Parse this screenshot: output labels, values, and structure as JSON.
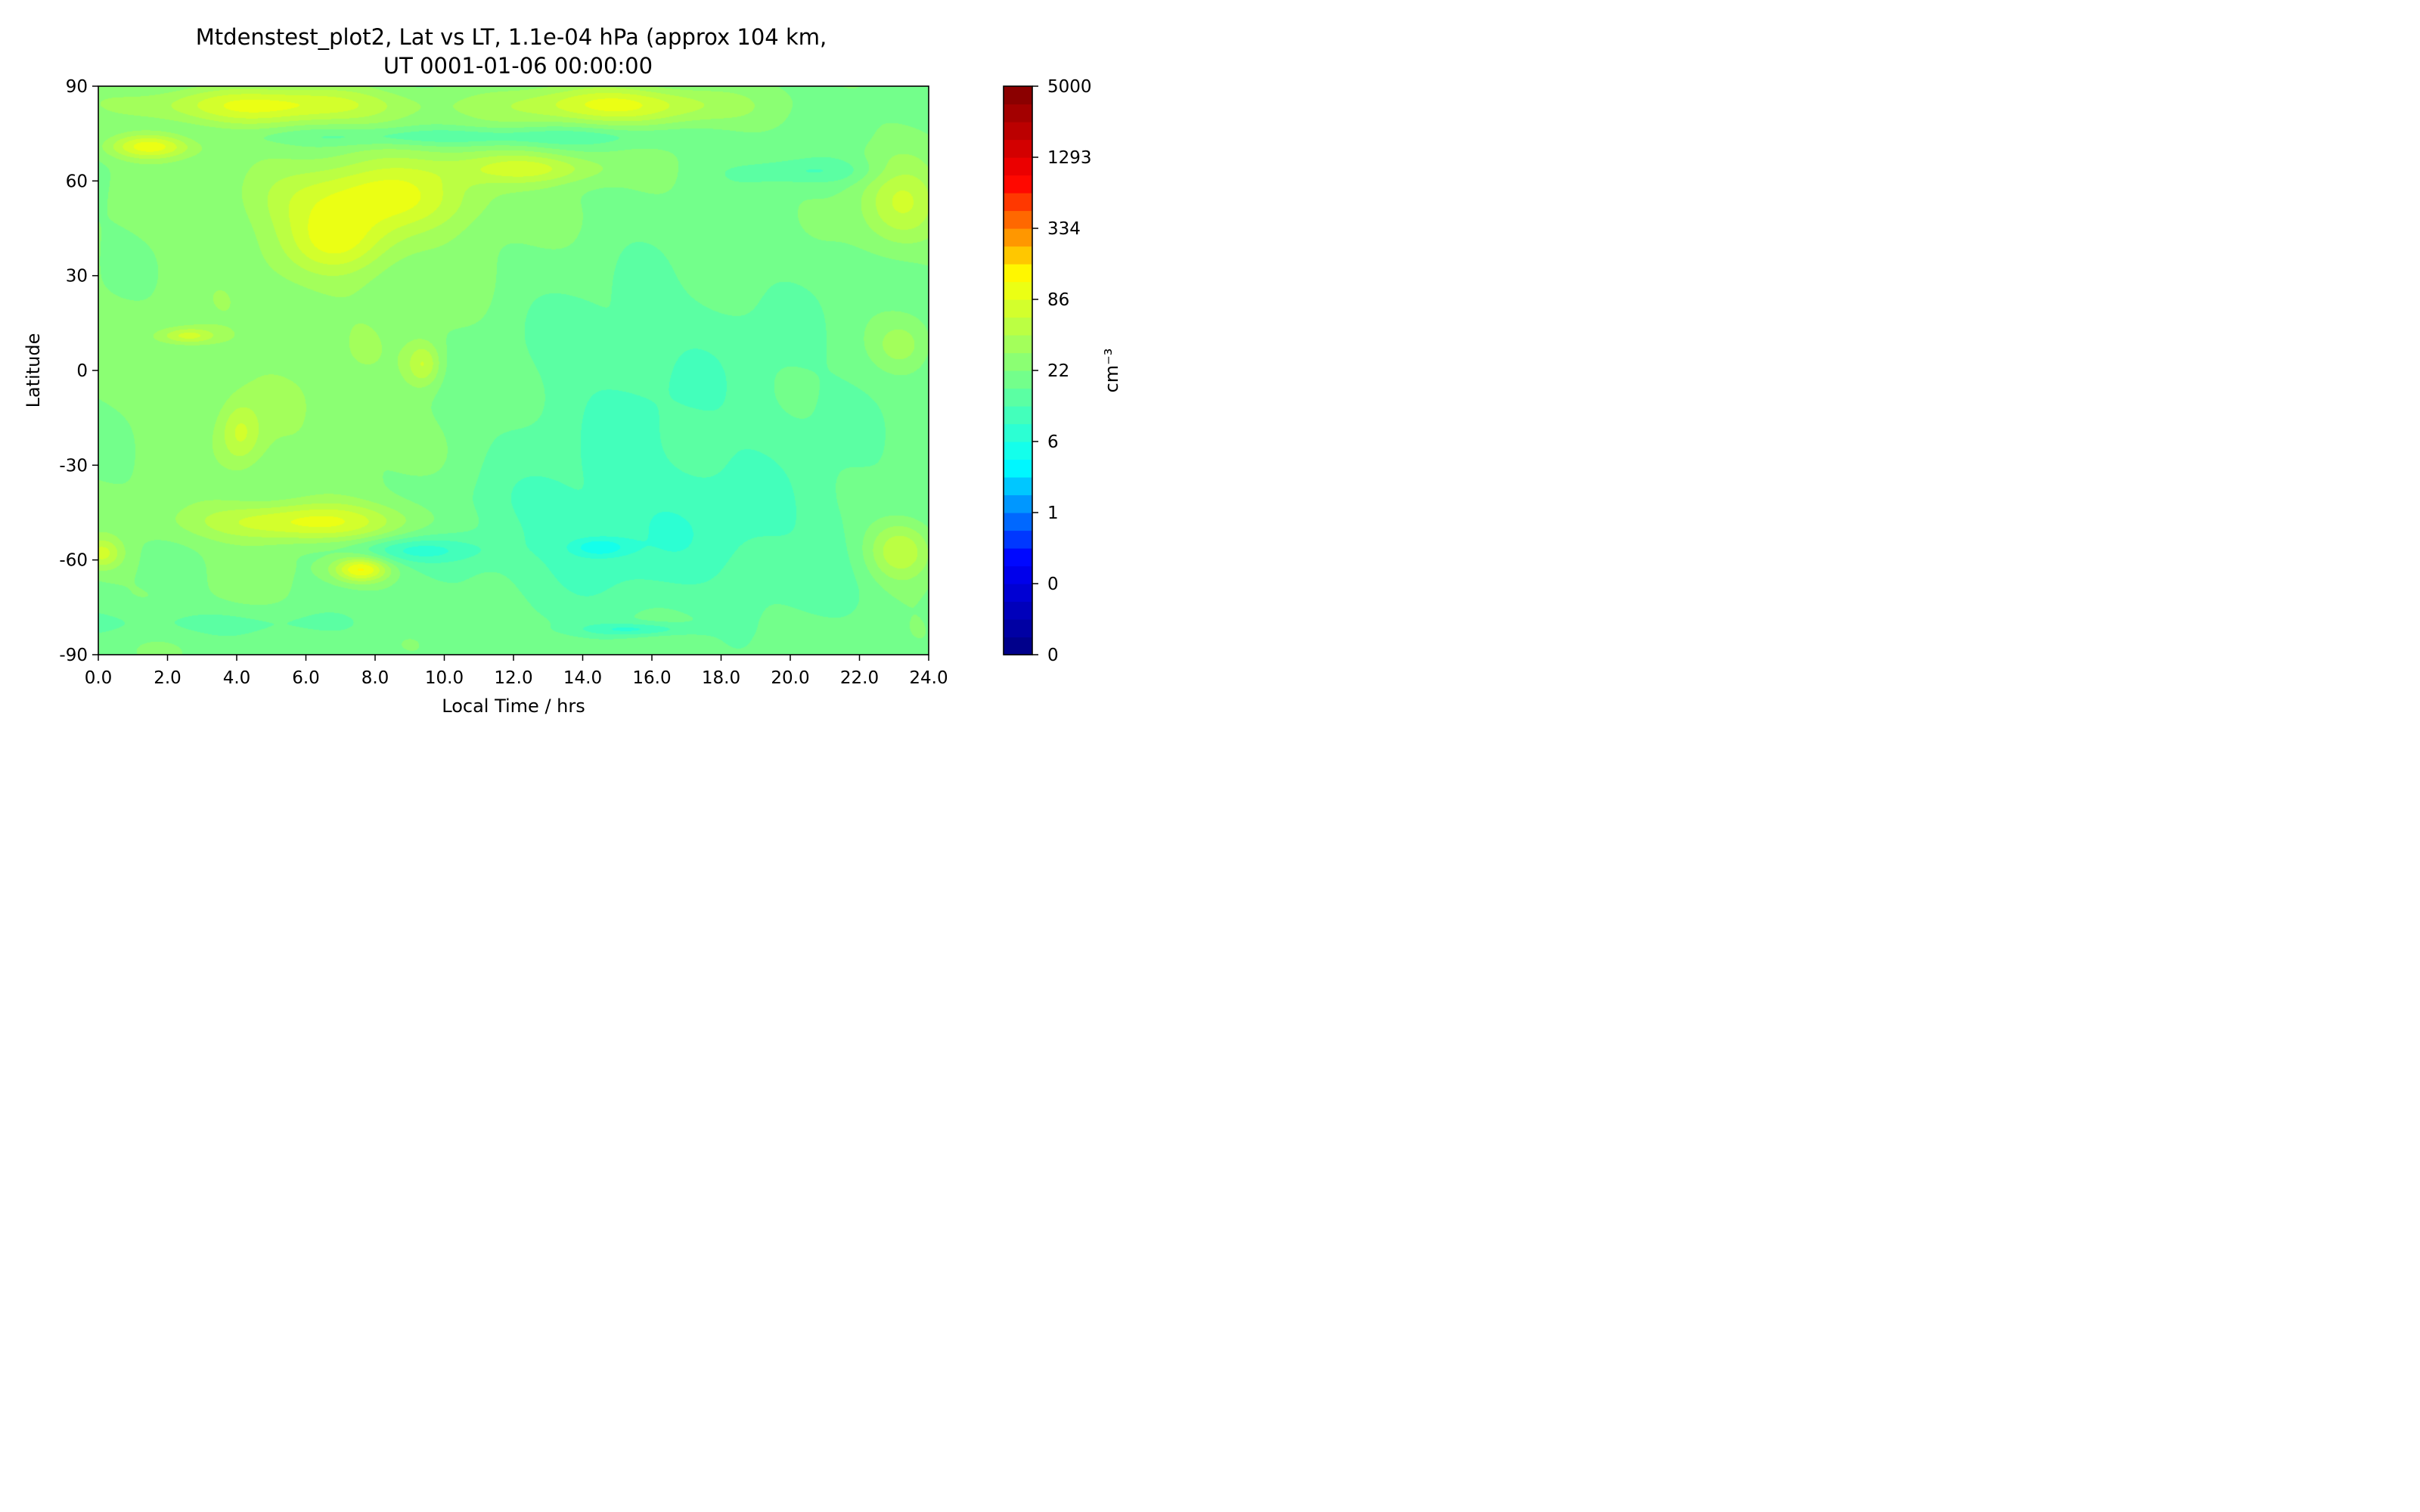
{
  "chart_data": {
    "type": "heatmap",
    "title_lines": [
      "Mtdenstest_plot2, Lat vs LT, 1.1e-04 hPa (approx 104 km,",
      "UT 0001-01-06 00:00:00"
    ],
    "xlabel": "Local Time / hrs",
    "ylabel": "Latitude",
    "colorbar_label": "cm⁻³",
    "xlim": [
      0,
      24
    ],
    "ylim": [
      -90,
      90
    ],
    "x_ticks": [
      0,
      2,
      4,
      6,
      8,
      10,
      12,
      14,
      16,
      18,
      20,
      22,
      24
    ],
    "x_tick_labels": [
      "0.0",
      "2.0",
      "4.0",
      "6.0",
      "8.0",
      "10.0",
      "12.0",
      "14.0",
      "16.0",
      "18.0",
      "20.0",
      "22.0",
      "24.0"
    ],
    "y_ticks": [
      90,
      60,
      30,
      0,
      -30,
      -60,
      -90
    ],
    "y_tick_labels": [
      "90",
      "60",
      "30",
      "0",
      "-30",
      "-60",
      "-90"
    ],
    "colorbar_tick_labels": [
      "5000",
      "1293",
      "334",
      "86",
      "22",
      "6",
      "1",
      "0",
      "0"
    ],
    "colorbar_levels": 32,
    "colormap_stops": [
      "#00007f",
      "#0000ff",
      "#00ffff",
      "#7fff7f",
      "#ffff00",
      "#ff0000",
      "#7f0000"
    ],
    "field_baseline_level": 15.8,
    "field_features": [
      {
        "lt": 5.0,
        "lat": 84,
        "w": 4.0,
        "h": 6,
        "dv": 4.3
      },
      {
        "lt": 15.0,
        "lat": 84,
        "w": 3.0,
        "h": 6,
        "dv": 4.6
      },
      {
        "lt": 1.5,
        "lat": 71,
        "w": 1.2,
        "h": 4,
        "dv": 4.6
      },
      {
        "lt": 8.0,
        "lat": 55,
        "w": 3.2,
        "h": 12,
        "dv": 3.9
      },
      {
        "lt": 12.5,
        "lat": 64,
        "w": 2.2,
        "h": 5,
        "dv": 3.3
      },
      {
        "lt": 7.0,
        "lat": 40,
        "w": 1.5,
        "h": 10,
        "dv": 3.0
      },
      {
        "lt": 23.2,
        "lat": 52,
        "w": 1.2,
        "h": 14,
        "dv": 3.4
      },
      {
        "lt": 10.5,
        "lat": 74,
        "w": 6.0,
        "h": 3,
        "dv": -2.0
      },
      {
        "lt": 20.5,
        "lat": 63,
        "w": 2.0,
        "h": 4,
        "dv": -1.7
      },
      {
        "lt": 15.5,
        "lat": -10,
        "w": 6.0,
        "h": 45,
        "dv": -1.9
      },
      {
        "lt": 15.5,
        "lat": -55,
        "w": 7.5,
        "h": 25,
        "dv": -1.9
      },
      {
        "lt": 6.0,
        "lat": -48,
        "w": 3.2,
        "h": 6,
        "dv": 4.0
      },
      {
        "lt": 7.6,
        "lat": -63,
        "w": 0.8,
        "h": 4,
        "dv": 5.4
      },
      {
        "lt": 23.2,
        "lat": -57,
        "w": 1.0,
        "h": 10,
        "dv": 4.0
      },
      {
        "lt": 0.1,
        "lat": -58,
        "w": 0.6,
        "h": 5,
        "dv": 3.2
      },
      {
        "lt": 4.1,
        "lat": -20,
        "w": 0.6,
        "h": 10,
        "dv": 2.6
      },
      {
        "lt": 9.4,
        "lat": 2,
        "w": 0.5,
        "h": 7,
        "dv": 3.0
      },
      {
        "lt": 2.6,
        "lat": 11,
        "w": 0.8,
        "h": 2.5,
        "dv": 3.0
      },
      {
        "lt": 9.0,
        "lat": -57,
        "w": 2.0,
        "h": 4,
        "dv": -2.4
      },
      {
        "lt": 14.5,
        "lat": -56,
        "w": 0.8,
        "h": 3,
        "dv": -2.6
      },
      {
        "lt": 15.5,
        "lat": -82,
        "w": 1.5,
        "h": 2,
        "dv": -2.4
      },
      {
        "lt": 3.0,
        "lat": -80,
        "w": 5.0,
        "h": 5,
        "dv": -1.2
      },
      {
        "lt": 23.2,
        "lat": 8,
        "w": 0.8,
        "h": 8,
        "dv": 1.8
      }
    ],
    "grid": false
  }
}
